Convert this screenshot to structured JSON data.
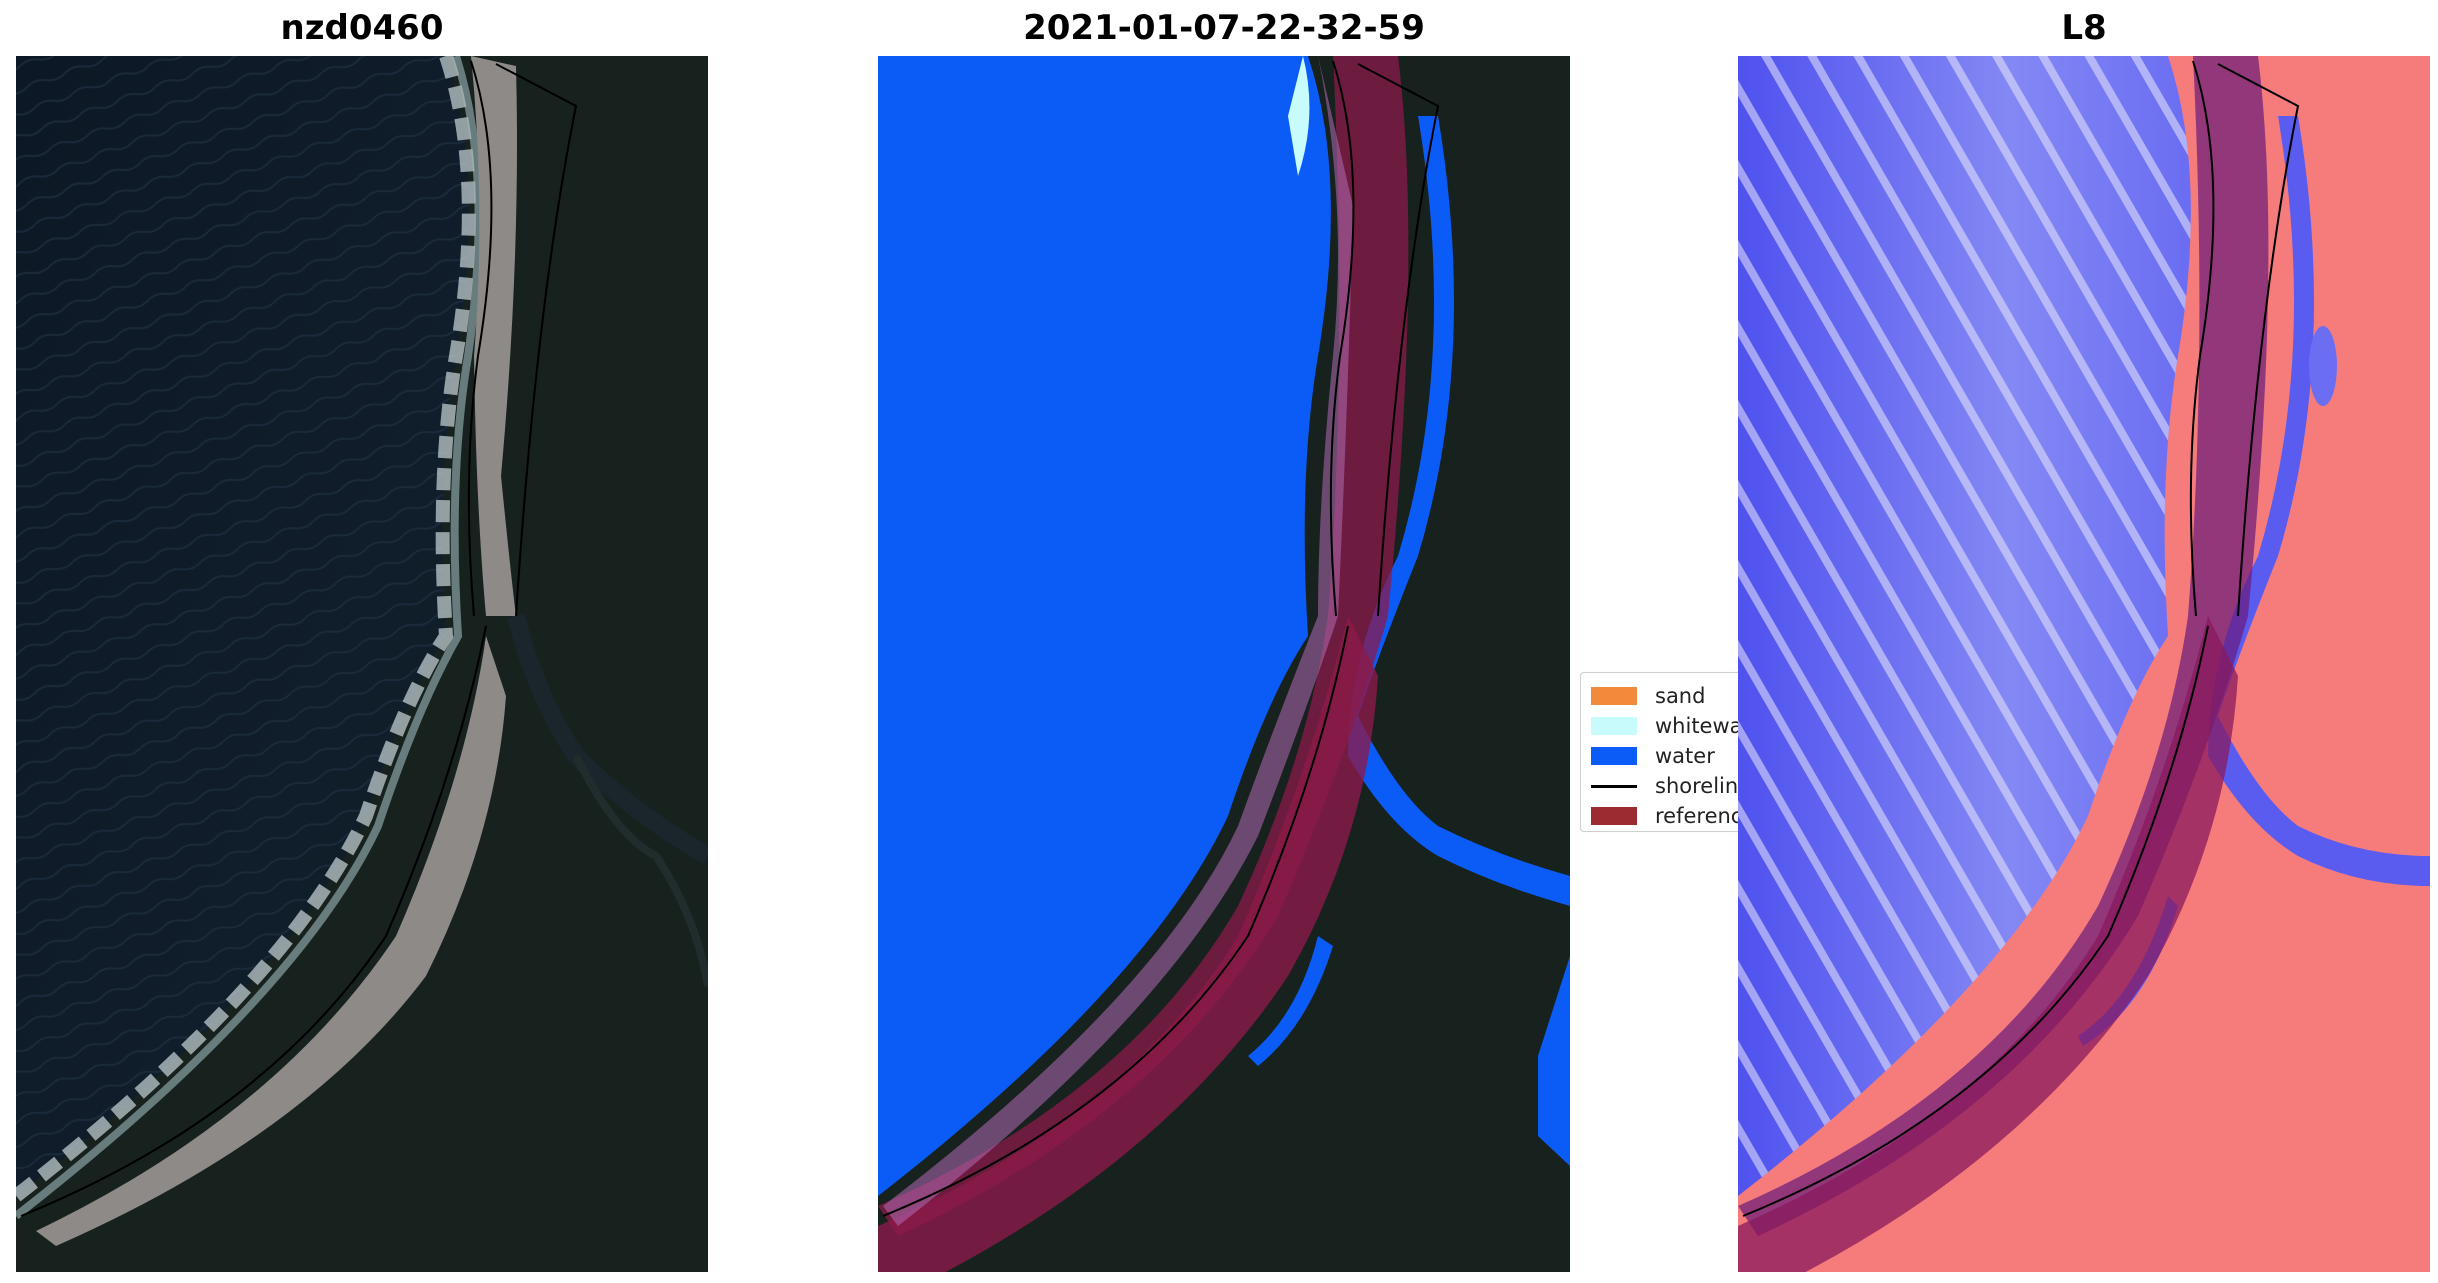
{
  "panels": [
    {
      "title": "nzd0460"
    },
    {
      "title": "2021-01-07-22-32-59"
    },
    {
      "title": "L8"
    }
  ],
  "legend": {
    "items": [
      {
        "label": "sand",
        "color": "#f28a3c"
      },
      {
        "label": "whitewa",
        "color": "#c8fbfb"
      },
      {
        "label": "water",
        "color": "#0b5cf7"
      },
      {
        "label": "shoreline",
        "color": "#000000"
      },
      {
        "label": "referenc",
        "color": "#9b2b30"
      }
    ]
  },
  "colors": {
    "ocean_dark": "#0f1a26",
    "land_dark": "#182320",
    "sand_gray": "#8d8a88",
    "water_class": "#0b5cf7",
    "reference_band": "#8b1a4a",
    "mndwi_blue": "#5a5cf0",
    "mndwi_red": "#f25a5a"
  }
}
